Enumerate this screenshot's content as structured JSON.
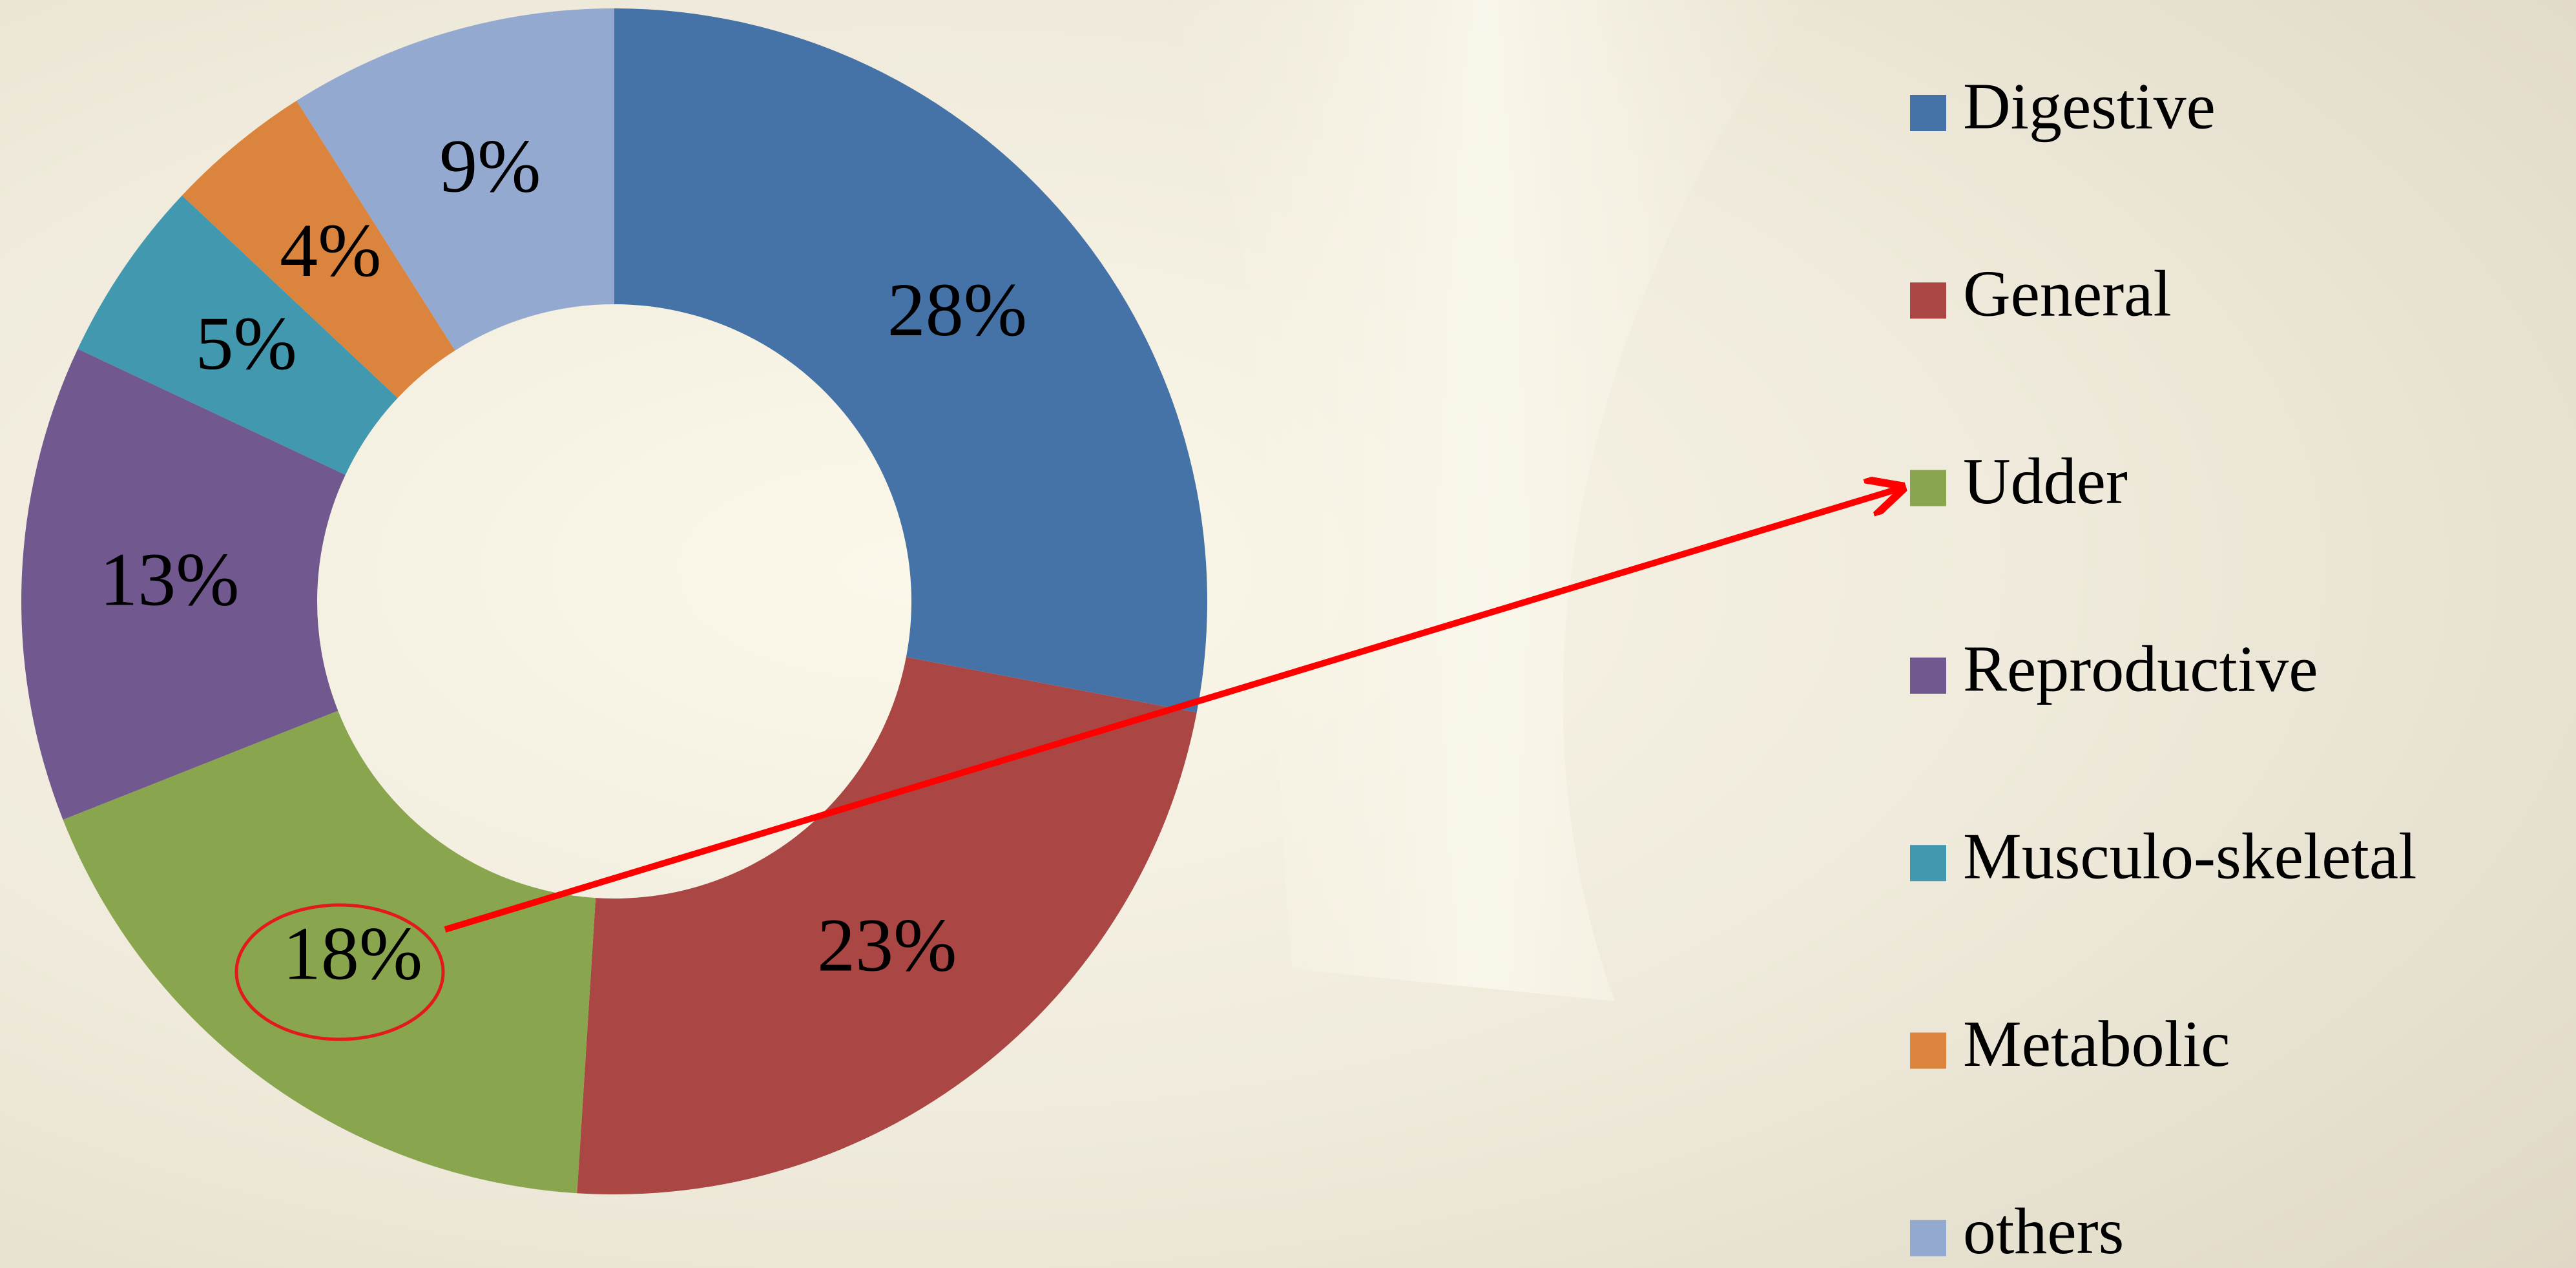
{
  "chart_data": {
    "type": "pie",
    "donut": true,
    "categories": [
      "Digestive",
      "General",
      "Udder",
      "Reproductive",
      "Musculo-skeletal",
      "Metabolic",
      "others"
    ],
    "values": [
      28,
      23,
      18,
      13,
      5,
      4,
      9
    ],
    "value_labels": [
      "28%",
      "23%",
      "18%",
      "13%",
      "5%",
      "4%",
      "9%"
    ],
    "colors": [
      "#4572a7",
      "#aa4643",
      "#89a54e",
      "#71588f",
      "#4198af",
      "#db843d",
      "#93a9cf"
    ],
    "legend": "right"
  }
}
